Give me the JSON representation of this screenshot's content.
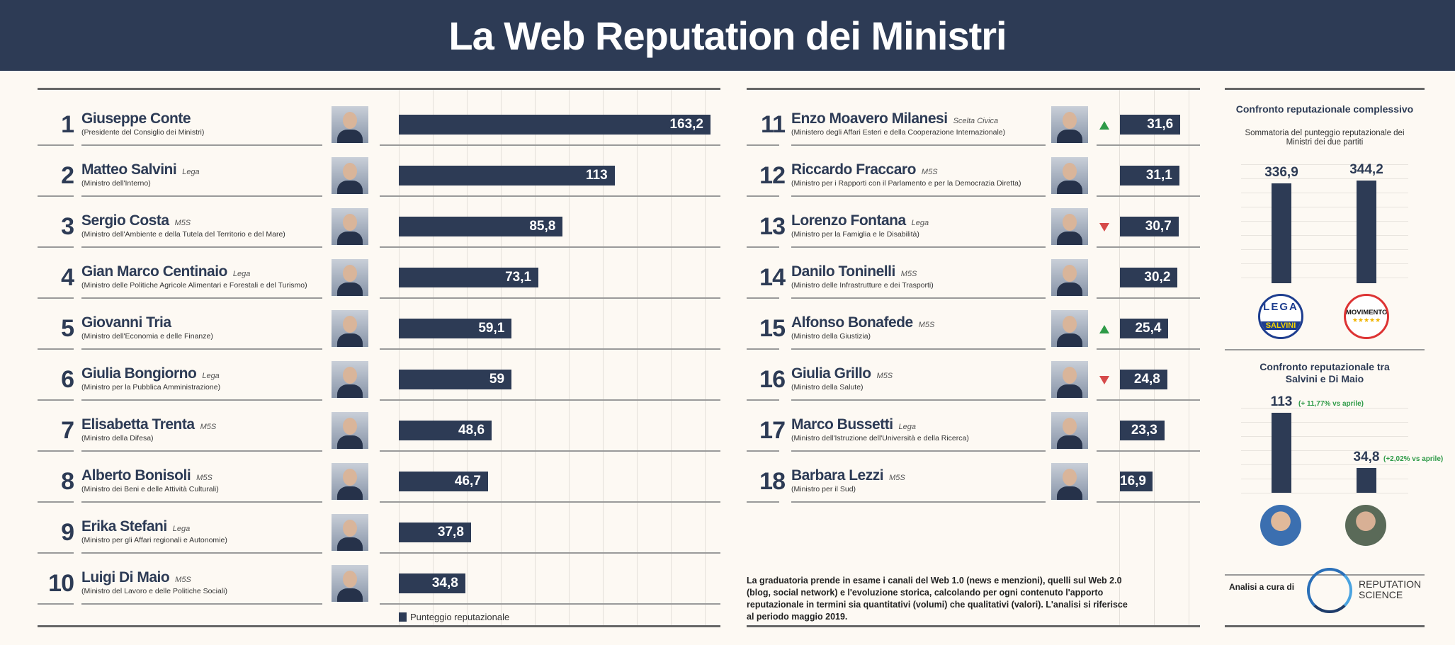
{
  "header": {
    "title": "La Web Reputation dei Ministri"
  },
  "colors": {
    "navy": "#2d3b55",
    "up": "#2e9a47",
    "down": "#d64a4a",
    "background": "#fdf9f3"
  },
  "ministers": [
    {
      "rank": "1",
      "party": "",
      "role": "(Presidente del Consiglio dei Ministri)",
      "trend": ""
    },
    {
      "rank": "2",
      "party": "Lega",
      "role": "(Ministro dell'Interno)",
      "trend": ""
    },
    {
      "rank": "3",
      "party": "M5S",
      "role": "(Ministro dell'Ambiente e della Tutela del Territorio e del Mare)",
      "trend": ""
    },
    {
      "rank": "4",
      "party": "Lega",
      "role": "(Ministro delle Politiche Agricole Alimentari e Forestali e del Turismo)",
      "trend": ""
    },
    {
      "rank": "5",
      "party": "",
      "role": "(Ministro dell'Economia e delle Finanze)",
      "trend": ""
    },
    {
      "rank": "6",
      "party": "Lega",
      "role": "(Ministro per la Pubblica Amministrazione)",
      "trend": ""
    },
    {
      "rank": "7",
      "party": "M5S",
      "role": "(Ministro della Difesa)",
      "trend": ""
    },
    {
      "rank": "8",
      "party": "M5S",
      "role": "(Ministro dei Beni e delle Attività Culturali)",
      "trend": ""
    },
    {
      "rank": "9",
      "party": "Lega",
      "role": "(Ministro per gli Affari regionali e Autonomie)",
      "trend": ""
    },
    {
      "rank": "10",
      "party": "M5S",
      "role": "(Ministro del Lavoro e delle Politiche Sociali)",
      "trend": ""
    },
    {
      "rank": "11",
      "party": "Scelta Civica",
      "role": "(Ministero degli Affari Esteri e della Cooperazione Internazionale)",
      "trend": "up"
    },
    {
      "rank": "12",
      "party": "M5S",
      "role": "(Ministro per i Rapporti con il Parlamento e per la Democrazia Diretta)",
      "trend": ""
    },
    {
      "rank": "13",
      "party": "Lega",
      "role": "(Ministro per la Famiglia e le Disabilità)",
      "trend": "down"
    },
    {
      "rank": "14",
      "party": "M5S",
      "role": "(Ministro delle Infrastrutture e dei Trasporti)",
      "trend": ""
    },
    {
      "rank": "15",
      "party": "M5S",
      "role": "(Ministro della Giustizia)",
      "trend": "up"
    },
    {
      "rank": "16",
      "party": "M5S",
      "role": "(Ministro della Salute)",
      "trend": "down"
    },
    {
      "rank": "17",
      "party": "Lega",
      "role": "(Ministro dell'Istruzione dell'Università e della Ricerca)",
      "trend": ""
    },
    {
      "rank": "18",
      "party": "M5S",
      "role": "(Ministro per il Sud)",
      "trend": ""
    }
  ],
  "chart_data": [
    {
      "type": "bar",
      "orientation": "horizontal",
      "categories": [
        "Giuseppe Conte",
        "Matteo Salvini",
        "Sergio Costa",
        "Gian Marco Centinaio",
        "Giovanni Tria",
        "Giulia Bongiorno",
        "Elisabetta Trenta",
        "Alberto Bonisoli",
        "Erika Stefani",
        "Luigi Di Maio",
        "Enzo Moavero Milanesi",
        "Riccardo Fraccaro",
        "Lorenzo Fontana",
        "Danilo Toninelli",
        "Alfonso Bonafede",
        "Giulia Grillo",
        "Marco Bussetti",
        "Barbara Lezzi"
      ],
      "values": [
        163.2,
        113,
        85.8,
        73.1,
        59.1,
        59,
        48.6,
        46.7,
        37.8,
        34.8,
        31.6,
        31.1,
        30.7,
        30.2,
        25.4,
        24.8,
        23.3,
        16.9
      ],
      "labels": [
        "163,2",
        "113",
        "85,8",
        "73,1",
        "59,1",
        "59",
        "48,6",
        "46,7",
        "37,8",
        "34,8",
        "31,6",
        "31,1",
        "30,7",
        "30,2",
        "25,4",
        "24,8",
        "23,3",
        "16,9"
      ],
      "legend": "Punteggio reputazionale",
      "grid": true
    },
    {
      "type": "bar",
      "title": "Confronto reputazionale complessivo",
      "subtitle": "Sommatoria del punteggio reputazionale dei Ministri dei due partiti",
      "categories": [
        "Lega",
        "M5S"
      ],
      "values": [
        336.9,
        344.2
      ],
      "labels": [
        "336,9",
        "344,2"
      ],
      "grid": true
    },
    {
      "type": "bar",
      "title": "Confronto reputazionale tra Salvini e Di Maio",
      "categories": [
        "Matteo Salvini",
        "Luigi Di Maio"
      ],
      "values": [
        113,
        34.8
      ],
      "labels": [
        "113",
        "34,8"
      ],
      "annotations": [
        "(+ 11,77% vs aprile)",
        "(+2,02% vs aprile)"
      ],
      "grid": true
    }
  ],
  "logos": {
    "lega": "LEGA SALVINI PREMIER",
    "m5s": "MOVIMENTO ★★★★★ ILBLOGDELLESTELLE.IT"
  },
  "footer": {
    "note": "La graduatoria prende in esame i canali del Web 1.0 (news e menzioni), quelli sul Web 2.0 (blog, social network) e l'evoluzione storica, calcolando per ogni contenuto l'apporto reputazionale in termini sia quantitativi (volumi) che qualitativi (valori). L'analisi si riferisce al periodo maggio 2019.",
    "credit_label": "Analisi a cura di",
    "credit_logo_line1": "REPUTATION",
    "credit_logo_line2": "SCIENCE"
  }
}
